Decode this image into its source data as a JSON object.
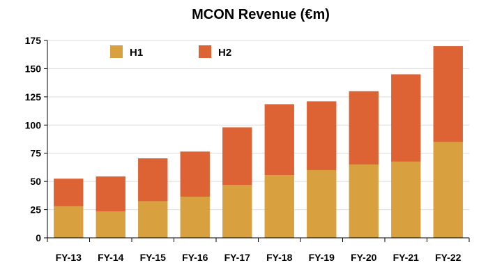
{
  "chart_data": {
    "type": "bar",
    "stacked": true,
    "title": "MCON Revenue (€m)",
    "xlabel": "",
    "ylabel": "",
    "categories": [
      "FY-13",
      "FY-14",
      "FY-15",
      "FY-16",
      "FY-17",
      "FY-18",
      "FY-19",
      "FY-20",
      "FY-21",
      "FY-22"
    ],
    "series": [
      {
        "name": "H1",
        "color": "#D9A03F",
        "values": [
          28,
          23.5,
          32.5,
          36.5,
          47,
          55.5,
          60,
          65,
          67.5,
          85
        ]
      },
      {
        "name": "H2",
        "color": "#DD6234",
        "values": [
          24.5,
          31,
          38,
          40,
          51,
          63,
          61,
          65,
          77.5,
          85
        ]
      }
    ],
    "ylim": [
      0,
      175
    ],
    "yticks": [
      0,
      25,
      50,
      75,
      100,
      125,
      150,
      175
    ],
    "grid": true,
    "legend_position": "top-left"
  }
}
